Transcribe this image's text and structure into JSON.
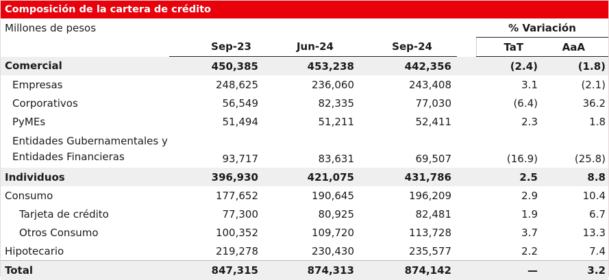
{
  "title": "Composición de la cartera de crédito",
  "units": "Millones de pesos",
  "colors": {
    "title_bar": "#e8000b",
    "highlight_row": "#efefef"
  },
  "header": {
    "variation": "% Variación",
    "columns": [
      "Sep-23",
      "Jun-24",
      "Sep-24",
      "TaT",
      "AaA"
    ]
  },
  "rows": [
    {
      "label": "Comercial",
      "values": [
        "450,385",
        "453,238",
        "442,356",
        "(2.4)",
        "(1.8)"
      ]
    },
    {
      "label": "Empresas",
      "values": [
        "248,625",
        "236,060",
        "243,408",
        "3.1",
        "(2.1)"
      ]
    },
    {
      "label": "Corporativos",
      "values": [
        "56,549",
        "82,335",
        "77,030",
        "(6.4)",
        "36.2"
      ]
    },
    {
      "label": "PyMEs",
      "values": [
        "51,494",
        "51,211",
        "52,411",
        "2.3",
        "1.8"
      ]
    },
    {
      "label_line1": "Entidades Gubernamentales y",
      "label_line2": "Entidades Financieras",
      "values": [
        "93,717",
        "83,631",
        "69,507",
        "(16.9)",
        "(25.8)"
      ]
    },
    {
      "label": "Individuos",
      "values": [
        "396,930",
        "421,075",
        "431,786",
        "2.5",
        "8.8"
      ]
    },
    {
      "label": "Consumo",
      "values": [
        "177,652",
        "190,645",
        "196,209",
        "2.9",
        "10.4"
      ]
    },
    {
      "label": "Tarjeta de crédito",
      "values": [
        "77,300",
        "80,925",
        "82,481",
        "1.9",
        "6.7"
      ]
    },
    {
      "label": "Otros Consumo",
      "values": [
        "100,352",
        "109,720",
        "113,728",
        "3.7",
        "13.3"
      ]
    },
    {
      "label": "Hipotecario",
      "values": [
        "219,278",
        "230,430",
        "235,577",
        "2.2",
        "7.4"
      ]
    },
    {
      "label": "Total",
      "values": [
        "847,315",
        "874,313",
        "874,142",
        "—",
        "3.2"
      ]
    }
  ]
}
